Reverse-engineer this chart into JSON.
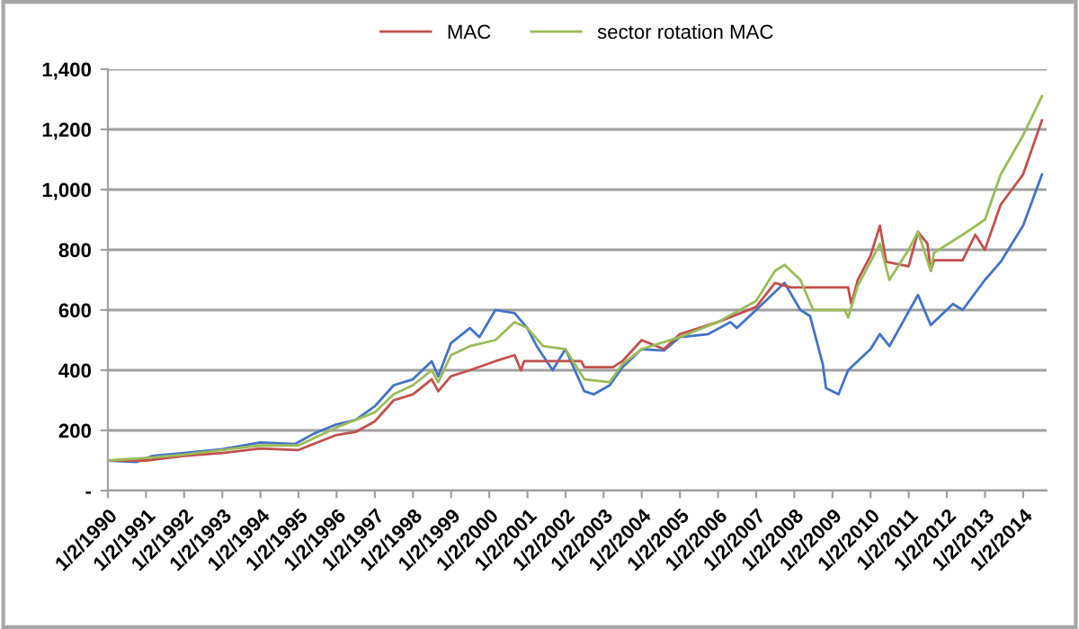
{
  "chart_data": {
    "type": "line",
    "ylim": [
      0,
      1400
    ],
    "yticks": [
      {
        "value": 0,
        "label": "-"
      },
      200,
      400,
      600,
      800,
      {
        "value": 1000,
        "label": "1,000"
      },
      {
        "value": 1200,
        "label": "1,200"
      },
      {
        "value": 1400,
        "label": "1,400"
      }
    ],
    "xlim": [
      "1990-01-02",
      "2014-08-15"
    ],
    "xticks": [
      {
        "value": "1990-01-02",
        "label": "1/2/1990"
      },
      {
        "value": "1991-01-02",
        "label": "1/2/1991"
      },
      {
        "value": "1992-01-02",
        "label": "1/2/1992"
      },
      {
        "value": "1993-01-02",
        "label": "1/2/1993"
      },
      {
        "value": "1994-01-02",
        "label": "1/2/1994"
      },
      {
        "value": "1995-01-02",
        "label": "1/2/1995"
      },
      {
        "value": "1996-01-02",
        "label": "1/2/1996"
      },
      {
        "value": "1997-01-02",
        "label": "1/2/1997"
      },
      {
        "value": "1998-01-02",
        "label": "1/2/1998"
      },
      {
        "value": "1999-01-02",
        "label": "1/2/1999"
      },
      {
        "value": "2000-01-02",
        "label": "1/2/2000"
      },
      {
        "value": "2001-01-02",
        "label": "1/2/2001"
      },
      {
        "value": "2002-01-02",
        "label": "1/2/2002"
      },
      {
        "value": "2003-01-02",
        "label": "1/2/2003"
      },
      {
        "value": "2004-01-02",
        "label": "1/2/2004"
      },
      {
        "value": "2005-01-02",
        "label": "1/2/2005"
      },
      {
        "value": "2006-01-02",
        "label": "1/2/2006"
      },
      {
        "value": "2007-01-02",
        "label": "1/2/2007"
      },
      {
        "value": "2008-01-02",
        "label": "1/2/2008"
      },
      {
        "value": "2009-01-02",
        "label": "1/2/2009"
      },
      {
        "value": "2010-01-02",
        "label": "1/2/2010"
      },
      {
        "value": "2011-01-02",
        "label": "1/2/2011"
      },
      {
        "value": "2012-01-02",
        "label": "1/2/2012"
      },
      {
        "value": "2013-01-02",
        "label": "1/2/2013"
      },
      {
        "value": "2014-01-02",
        "label": "1/2/2014"
      }
    ],
    "grid": "y",
    "legend": "top",
    "series": [
      {
        "color": "#4472c4",
        "x": [
          "1990-01-02",
          "1990-10",
          "1991-03",
          "1992-01",
          "1993-01",
          "1994-01",
          "1994-12",
          "1995-06",
          "1996-01",
          "1996-07",
          "1997-01",
          "1997-07",
          "1998-01",
          "1998-07",
          "1998-09",
          "1999-01",
          "1999-07",
          "1999-10",
          "2000-03",
          "2000-09",
          "2001-01",
          "2001-04",
          "2001-09",
          "2002-01",
          "2002-07",
          "2002-10",
          "2003-03",
          "2003-07",
          "2004-01",
          "2004-08",
          "2005-01",
          "2005-10",
          "2006-05",
          "2006-07",
          "2007-01",
          "2007-07",
          "2007-10",
          "2008-03",
          "2008-06",
          "2008-10",
          "2008-11",
          "2009-03",
          "2009-06",
          "2010-01",
          "2010-04",
          "2010-07",
          "2011-04",
          "2011-08",
          "2012-03",
          "2012-06",
          "2013-01",
          "2013-06",
          "2014-01",
          "2014-07"
        ],
        "values": [
          100,
          95,
          115,
          125,
          138,
          160,
          155,
          190,
          220,
          235,
          280,
          350,
          370,
          430,
          380,
          490,
          540,
          510,
          600,
          590,
          540,
          480,
          400,
          470,
          330,
          320,
          350,
          410,
          470,
          465,
          510,
          520,
          560,
          540,
          600,
          660,
          690,
          600,
          580,
          420,
          340,
          320,
          400,
          470,
          520,
          480,
          650,
          550,
          620,
          600,
          700,
          760,
          880,
          1050
        ]
      },
      {
        "name": "MAC",
        "color": "#c0504d",
        "x": [
          "1990-01-02",
          "1991-01",
          "1992-01",
          "1993-01",
          "1994-01",
          "1995-01",
          "1996-01",
          "1996-07",
          "1997-01",
          "1997-07",
          "1998-01",
          "1998-07",
          "1998-09",
          "1999-01",
          "1999-07",
          "2000-03",
          "2000-09",
          "2000-11",
          "2000-12",
          "2002-06",
          "2002-07",
          "2003-04",
          "2003-07",
          "2004-01",
          "2004-08",
          "2005-01",
          "2006-01",
          "2007-01",
          "2007-07",
          "2007-12",
          "2009-06",
          "2009-07",
          "2009-09",
          "2010-01",
          "2010-04",
          "2010-06",
          "2011-01",
          "2011-04",
          "2011-07",
          "2011-08",
          "2011-09",
          "2012-06",
          "2012-10",
          "2013-01",
          "2013-06",
          "2014-01",
          "2014-07"
        ],
        "values": [
          100,
          100,
          115,
          125,
          140,
          135,
          185,
          195,
          230,
          300,
          320,
          370,
          330,
          380,
          400,
          430,
          450,
          400,
          430,
          430,
          410,
          410,
          430,
          500,
          470,
          520,
          560,
          610,
          690,
          675,
          675,
          620,
          700,
          780,
          880,
          760,
          745,
          860,
          820,
          730,
          765,
          765,
          850,
          800,
          950,
          1050,
          1230
        ]
      },
      {
        "name": "sector rotation MAC",
        "color": "#9bbb59",
        "x": [
          "1990-01-02",
          "1991-03",
          "1992-01",
          "1993-01",
          "1994-01",
          "1995-01",
          "1996-01",
          "1997-01",
          "1997-07",
          "1998-01",
          "1998-07",
          "1998-09",
          "1999-01",
          "1999-07",
          "2000-03",
          "2000-09",
          "2001-01",
          "2001-06",
          "2002-01",
          "2002-07",
          "2003-03",
          "2003-07",
          "2004-01",
          "2005-01",
          "2006-01",
          "2007-01",
          "2007-07",
          "2007-10",
          "2008-03",
          "2008-07",
          "2009-05",
          "2009-06",
          "2009-09",
          "2010-01",
          "2010-04",
          "2010-07",
          "2011-01",
          "2011-04",
          "2011-08",
          "2011-09",
          "2012-06",
          "2013-01",
          "2013-06",
          "2014-01",
          "2014-07"
        ],
        "values": [
          100,
          110,
          120,
          135,
          150,
          150,
          210,
          260,
          320,
          350,
          400,
          360,
          450,
          480,
          500,
          560,
          540,
          480,
          470,
          370,
          360,
          420,
          470,
          510,
          560,
          630,
          730,
          750,
          700,
          600,
          600,
          575,
          680,
          760,
          820,
          700,
          800,
          860,
          730,
          790,
          850,
          900,
          1050,
          1180,
          1310
        ]
      }
    ]
  }
}
